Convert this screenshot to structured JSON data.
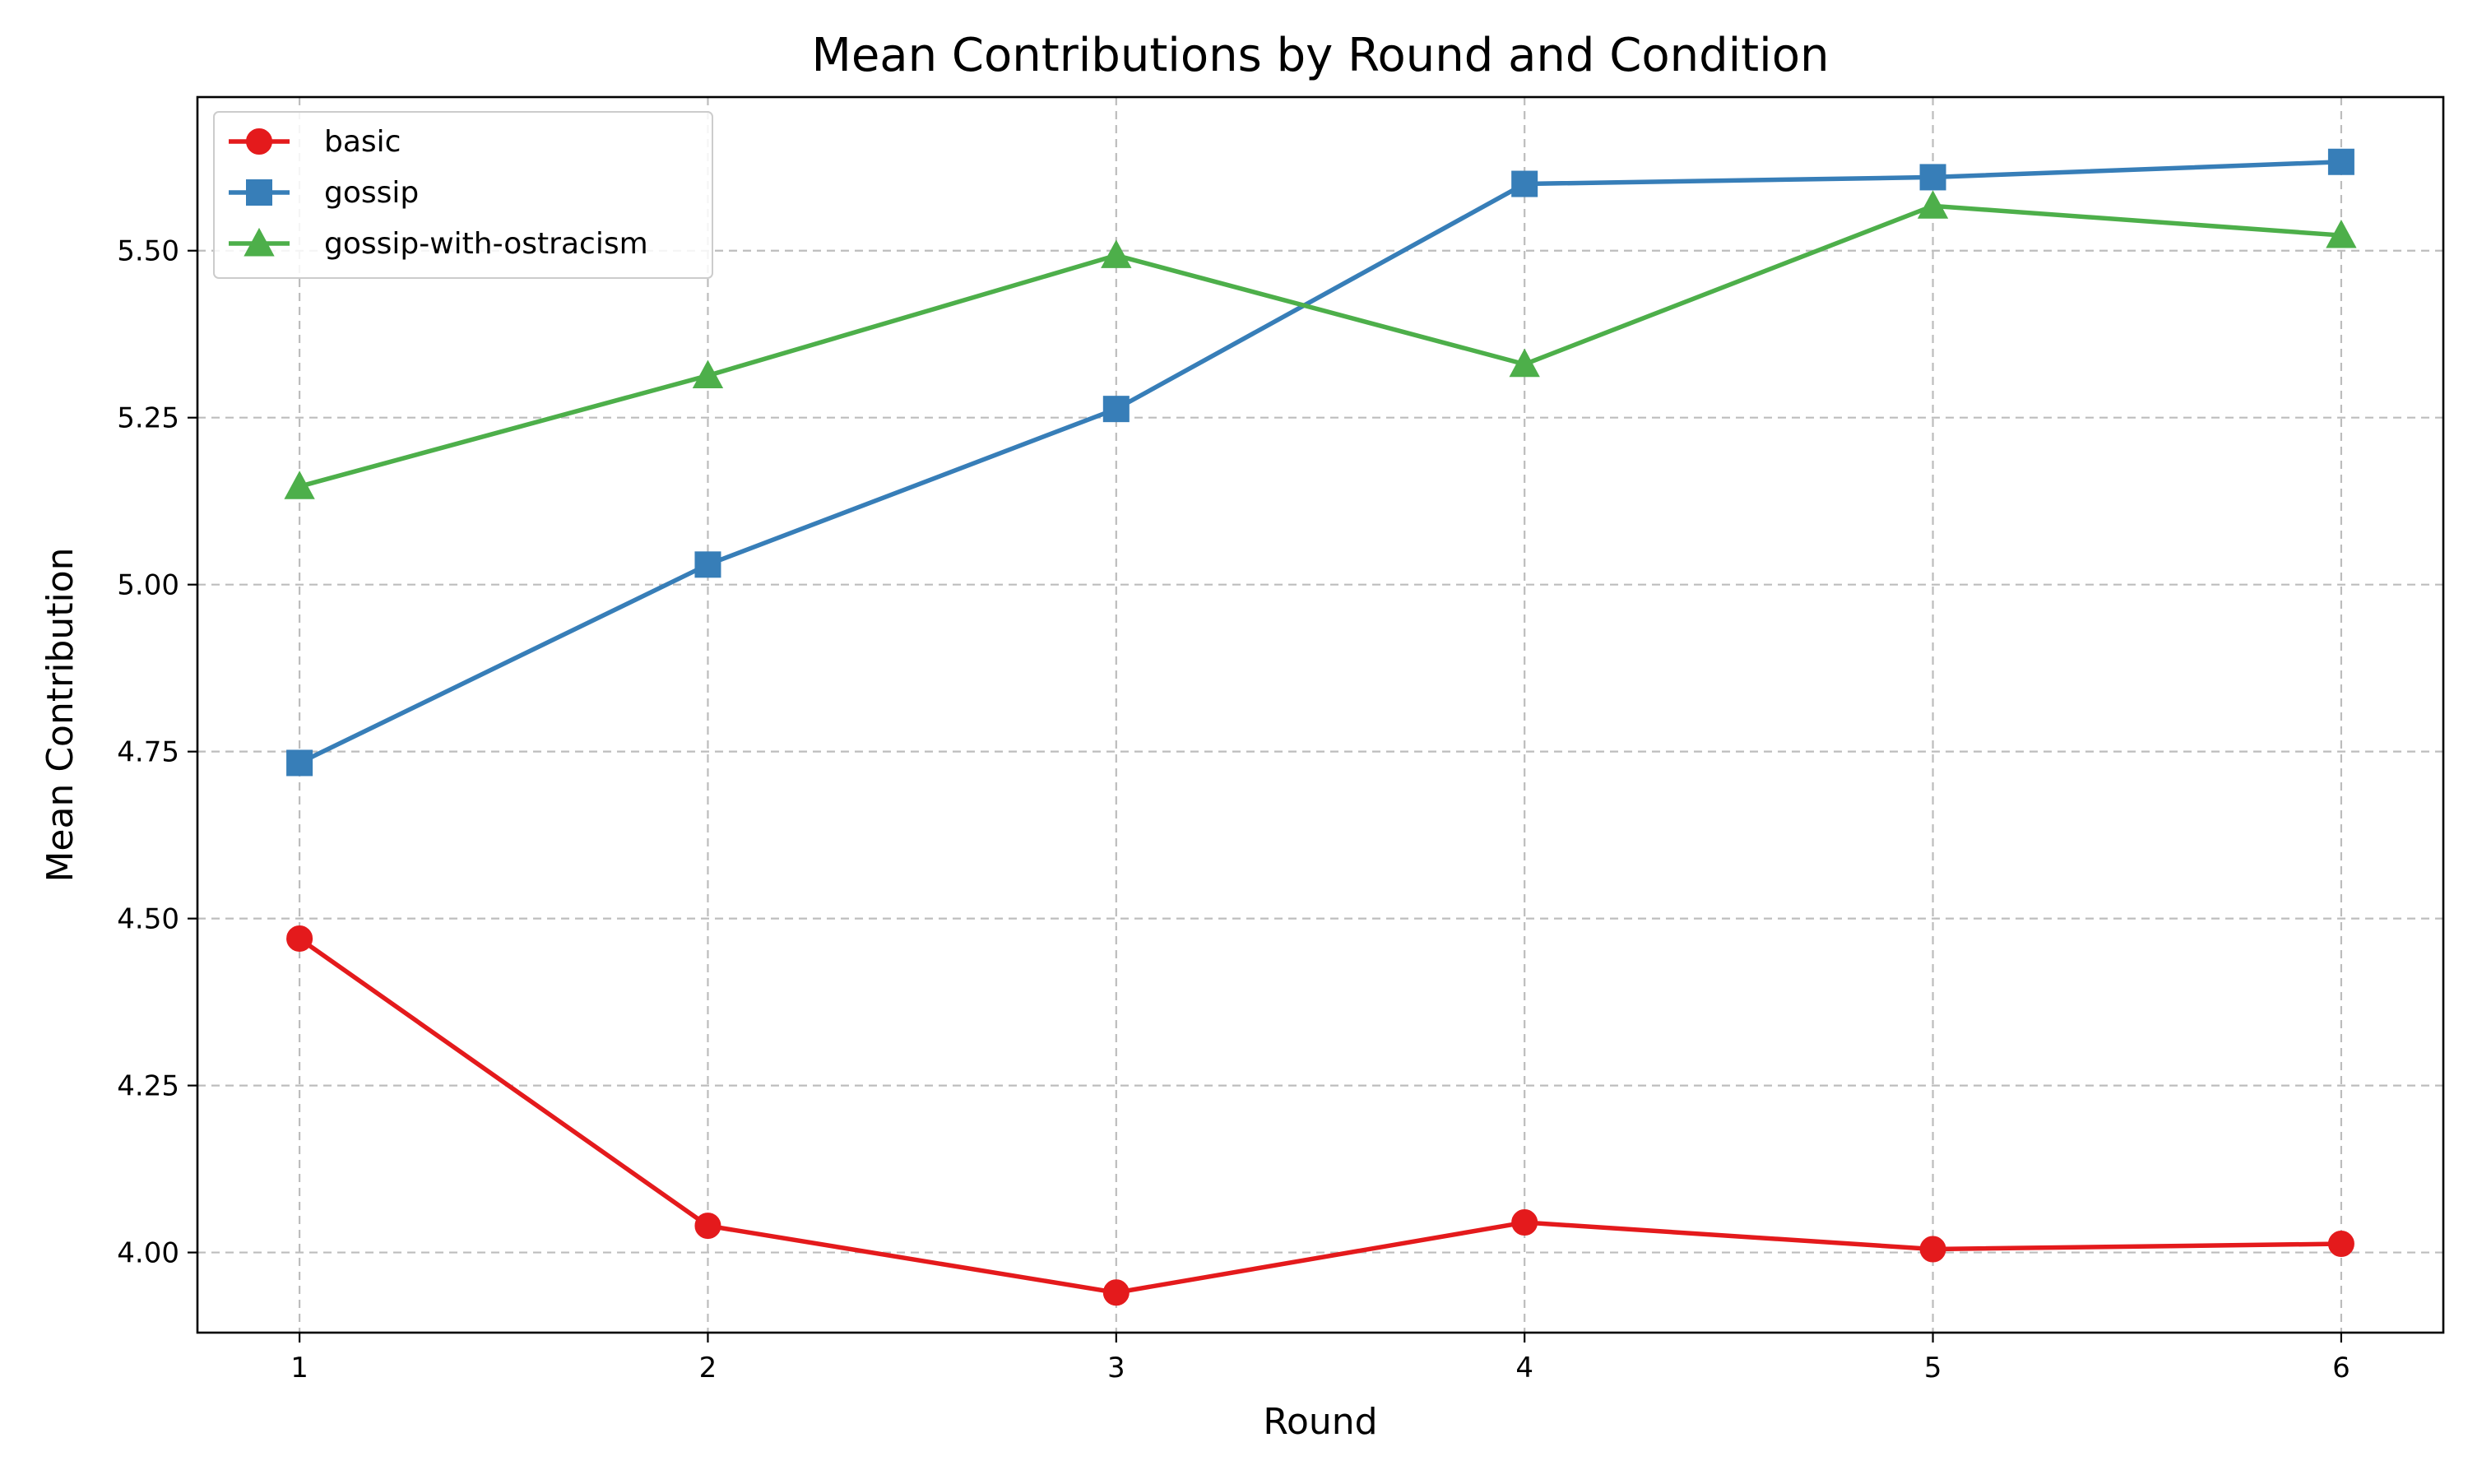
{
  "chart_data": {
    "type": "line",
    "title": "Mean Contributions by Round and Condition",
    "xlabel": "Round",
    "ylabel": "Mean Contribution",
    "x": [
      1,
      2,
      3,
      4,
      5,
      6
    ],
    "xlim": [
      0.75,
      6.25
    ],
    "ylim": [
      3.88,
      5.73
    ],
    "xticks": [
      1,
      2,
      3,
      4,
      5,
      6
    ],
    "yticks": [
      "4.00",
      "4.25",
      "4.50",
      "4.75",
      "5.00",
      "5.25",
      "5.50"
    ],
    "grid": true,
    "legend_position": "top-left",
    "series": [
      {
        "name": "basic",
        "color": "#e41a1c",
        "marker": "circle",
        "values": [
          4.47,
          4.04,
          3.94,
          4.045,
          4.005,
          4.013
        ]
      },
      {
        "name": "gossip",
        "color": "#377eb8",
        "marker": "square",
        "values": [
          4.733,
          5.03,
          5.263,
          5.6,
          5.61,
          5.633
        ]
      },
      {
        "name": "gossip-with-ostracism",
        "color": "#4daf4a",
        "marker": "triangle",
        "values": [
          5.147,
          5.313,
          5.493,
          5.33,
          5.567,
          5.523
        ]
      }
    ]
  }
}
